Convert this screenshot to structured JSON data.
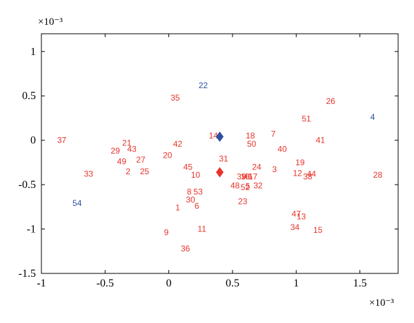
{
  "chart_data": {
    "type": "scatter",
    "x_exponent_label": "×10⁻³",
    "y_exponent_label": "×10⁻³",
    "xlim": [
      -1.0,
      1.8
    ],
    "ylim": [
      -1.5,
      1.2
    ],
    "x_ticks": [
      -1,
      -0.5,
      0,
      0.5,
      1,
      1.5
    ],
    "x_tick_labels": [
      "-1",
      "-0.5",
      "0",
      "0.5",
      "1",
      "1.5"
    ],
    "y_ticks": [
      -1.5,
      -1,
      -0.5,
      0,
      0.5,
      1
    ],
    "y_tick_labels": [
      "-1.5",
      "-1",
      "-0.5",
      "0",
      "0.5",
      "1"
    ],
    "grid": false,
    "colors": {
      "red": "#e8332b",
      "blue": "#2b4fa3"
    },
    "labeled_points": [
      {
        "label": "1",
        "x": 0.07,
        "y": -0.76,
        "color": "red"
      },
      {
        "label": "2",
        "x": -0.32,
        "y": -0.35,
        "color": "red"
      },
      {
        "label": "3",
        "x": 0.83,
        "y": -0.33,
        "color": "red"
      },
      {
        "label": "4",
        "x": 1.6,
        "y": 0.26,
        "color": "blue"
      },
      {
        "label": "5",
        "x": 0.62,
        "y": -0.52,
        "color": "red"
      },
      {
        "label": "6",
        "x": 0.22,
        "y": -0.74,
        "color": "red"
      },
      {
        "label": "7",
        "x": 0.82,
        "y": 0.07,
        "color": "red"
      },
      {
        "label": "8",
        "x": 0.16,
        "y": -0.58,
        "color": "red"
      },
      {
        "label": "9",
        "x": -0.02,
        "y": -1.04,
        "color": "red"
      },
      {
        "label": "10",
        "x": 0.21,
        "y": -0.39,
        "color": "red"
      },
      {
        "label": "11",
        "x": 0.26,
        "y": -1.0,
        "color": "red"
      },
      {
        "label": "12",
        "x": 1.01,
        "y": -0.37,
        "color": "red"
      },
      {
        "label": "13",
        "x": 1.04,
        "y": -0.86,
        "color": "red"
      },
      {
        "label": "14",
        "x": 0.35,
        "y": 0.05,
        "color": "red"
      },
      {
        "label": "15",
        "x": 1.17,
        "y": -1.01,
        "color": "red"
      },
      {
        "label": "16",
        "x": 0.6,
        "y": -0.41,
        "color": "red"
      },
      {
        "label": "17",
        "x": 0.66,
        "y": -0.41,
        "color": "red"
      },
      {
        "label": "18",
        "x": 0.64,
        "y": 0.05,
        "color": "red"
      },
      {
        "label": "19",
        "x": 1.03,
        "y": -0.25,
        "color": "red"
      },
      {
        "label": "20",
        "x": -0.01,
        "y": -0.17,
        "color": "red"
      },
      {
        "label": "21",
        "x": -0.33,
        "y": -0.03,
        "color": "red"
      },
      {
        "label": "22",
        "x": 0.27,
        "y": 0.62,
        "color": "blue"
      },
      {
        "label": "23",
        "x": 0.58,
        "y": -0.69,
        "color": "red"
      },
      {
        "label": "24",
        "x": 0.69,
        "y": -0.3,
        "color": "red"
      },
      {
        "label": "25",
        "x": -0.19,
        "y": -0.35,
        "color": "red"
      },
      {
        "label": "26",
        "x": 1.27,
        "y": 0.44,
        "color": "red"
      },
      {
        "label": "27",
        "x": -0.22,
        "y": -0.22,
        "color": "red"
      },
      {
        "label": "28",
        "x": 1.64,
        "y": -0.39,
        "color": "red"
      },
      {
        "label": "29",
        "x": -0.42,
        "y": -0.12,
        "color": "red"
      },
      {
        "label": "30",
        "x": 0.17,
        "y": -0.67,
        "color": "red"
      },
      {
        "label": "31",
        "x": 0.43,
        "y": -0.21,
        "color": "red"
      },
      {
        "label": "32",
        "x": 0.7,
        "y": -0.51,
        "color": "red"
      },
      {
        "label": "33",
        "x": -0.63,
        "y": -0.38,
        "color": "red"
      },
      {
        "label": "34",
        "x": 0.99,
        "y": -0.98,
        "color": "red"
      },
      {
        "label": "35",
        "x": 0.05,
        "y": 0.48,
        "color": "red"
      },
      {
        "label": "36",
        "x": 0.13,
        "y": -1.22,
        "color": "red"
      },
      {
        "label": "37",
        "x": -0.84,
        "y": 0.0,
        "color": "red"
      },
      {
        "label": "38",
        "x": 1.09,
        "y": -0.41,
        "color": "red"
      },
      {
        "label": "39",
        "x": 0.57,
        "y": -0.41,
        "color": "red"
      },
      {
        "label": "40",
        "x": 0.89,
        "y": -0.1,
        "color": "red"
      },
      {
        "label": "41",
        "x": 1.19,
        "y": 0.0,
        "color": "red"
      },
      {
        "label": "42",
        "x": 0.07,
        "y": -0.04,
        "color": "red"
      },
      {
        "label": "43",
        "x": -0.29,
        "y": -0.1,
        "color": "red"
      },
      {
        "label": "44",
        "x": 1.12,
        "y": -0.38,
        "color": "red"
      },
      {
        "label": "45",
        "x": 0.15,
        "y": -0.3,
        "color": "red"
      },
      {
        "label": "46",
        "x": 0.62,
        "y": -0.41,
        "color": "red"
      },
      {
        "label": "47",
        "x": 1.0,
        "y": -0.83,
        "color": "red"
      },
      {
        "label": "48",
        "x": 0.52,
        "y": -0.51,
        "color": "red"
      },
      {
        "label": "49",
        "x": -0.37,
        "y": -0.24,
        "color": "red"
      },
      {
        "label": "50",
        "x": 0.65,
        "y": -0.04,
        "color": "red"
      },
      {
        "label": "51",
        "x": 1.08,
        "y": 0.24,
        "color": "red"
      },
      {
        "label": "52",
        "x": 0.6,
        "y": -0.53,
        "color": "red"
      },
      {
        "label": "53",
        "x": 0.23,
        "y": -0.58,
        "color": "red"
      },
      {
        "label": "54",
        "x": -0.72,
        "y": -0.71,
        "color": "blue"
      }
    ],
    "markers": [
      {
        "shape": "diamond",
        "x": 0.4,
        "y": 0.04,
        "color": "blue"
      },
      {
        "shape": "diamond",
        "x": 0.4,
        "y": -0.36,
        "color": "red"
      }
    ]
  }
}
